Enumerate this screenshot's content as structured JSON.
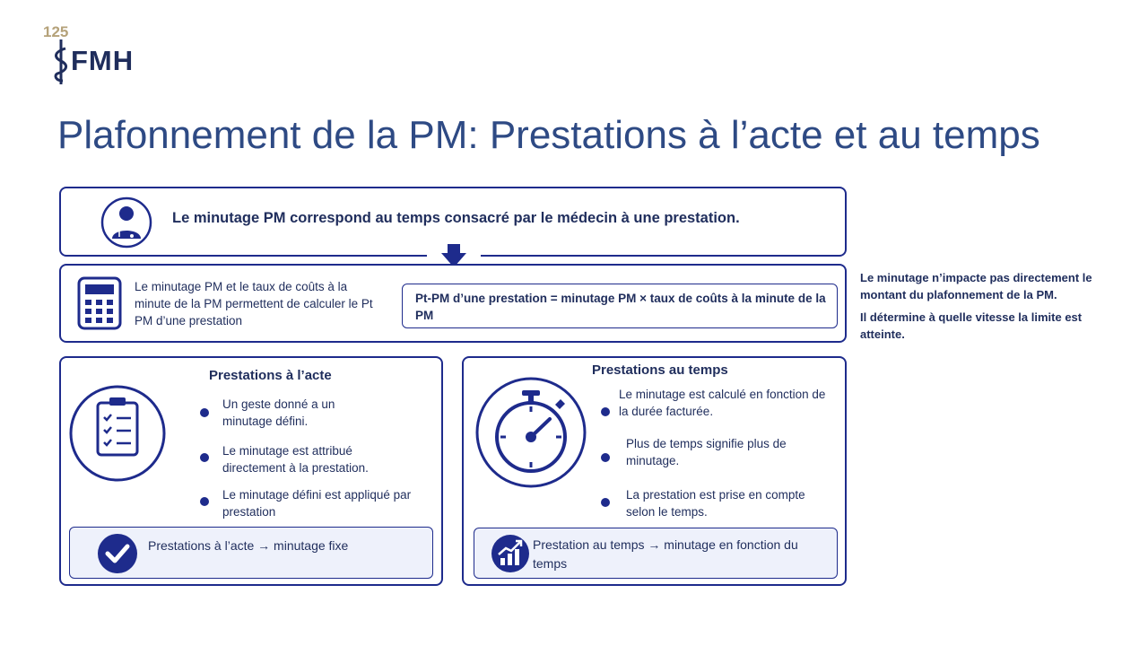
{
  "logo": {
    "number": "125",
    "name": "FMH"
  },
  "page_title": "Plafonnement de la PM: Prestations à l’acte et au temps",
  "top_box": {
    "text": "Le minutage PM correspond au temps consacré par le médecin à une prestation.",
    "icon": "doctor-icon"
  },
  "calc_box": {
    "text": "Le minutage PM et le taux de coûts à la minute de la PM permettent de calculer le Pt PM d’une prestation",
    "formula": "Pt-PM d’une prestation = minutage PM × taux de coûts à la minute de la PM",
    "icon": "calculator-icon"
  },
  "left_panel": {
    "title": "Prestations à l’acte",
    "icon": "clipboard-checklist-icon",
    "bullets": [
      "Un geste donné a un minutage défini.",
      "Le minutage est attribué directement à la prestation.",
      "Le minutage défini est appliqué par prestation"
    ],
    "footer": "Prestations à l’acte → minutage fixe",
    "footer_icon": "checkmark-icon"
  },
  "right_panel": {
    "title": "Prestations au temps",
    "icon": "stopwatch-icon",
    "bullets": [
      "Le minutage est calculé en fonction de la durée facturée.",
      "Plus de temps signifie plus de minutage.",
      "La prestation est prise en compte selon le temps."
    ],
    "footer": "Prestation au temps → minutage en fonction du temps",
    "footer_icon": "growth-chart-icon"
  },
  "side_notes": [
    "Le minutage n’impacte pas directement le montant du plafonnement de la PM.",
    "Il détermine à quelle vitesse la limite est atteinte."
  ],
  "colors": {
    "primary": "#1e2b8c",
    "title": "#2e4a84",
    "gold": "#b5a27a",
    "footer_bg": "#eef1fb"
  }
}
